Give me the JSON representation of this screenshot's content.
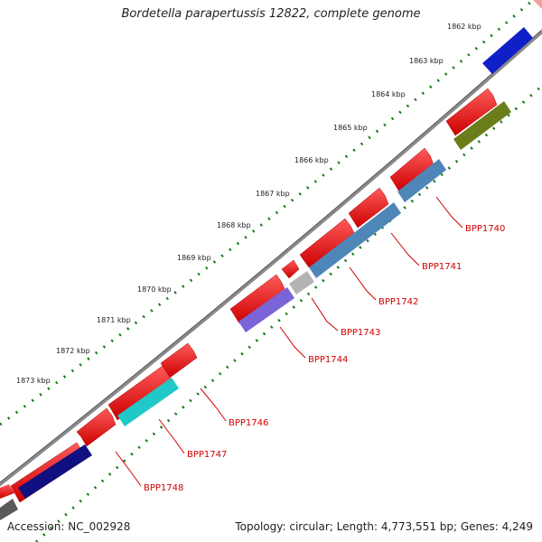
{
  "header": {
    "title": "Bordetella parapertussis 12822, complete genome"
  },
  "footer": {
    "accession": "Accession: NC_002928",
    "summary": "Topology: circular; Length: 4,773,551 bp; Genes: 4,249"
  },
  "scale": {
    "ticks": [
      "1862 kbp",
      "1863 kbp",
      "1864 kbp",
      "1865 kbp",
      "1866 kbp",
      "1867 kbp",
      "1868 kbp",
      "1869 kbp",
      "1870 kbp",
      "1871 kbp",
      "1872 kbp",
      "1873 kbp"
    ]
  },
  "genes": {
    "labels": [
      "BPP1740",
      "BPP1741",
      "BPP1742",
      "BPP1743",
      "BPP1744",
      "BPP1746",
      "BPP1747",
      "BPP1748"
    ]
  },
  "colors": {
    "backbone": "#8a8a8a",
    "forward_gene": "#ee0000",
    "tick_dots": "#1a7a1a",
    "label": "#d00000"
  }
}
